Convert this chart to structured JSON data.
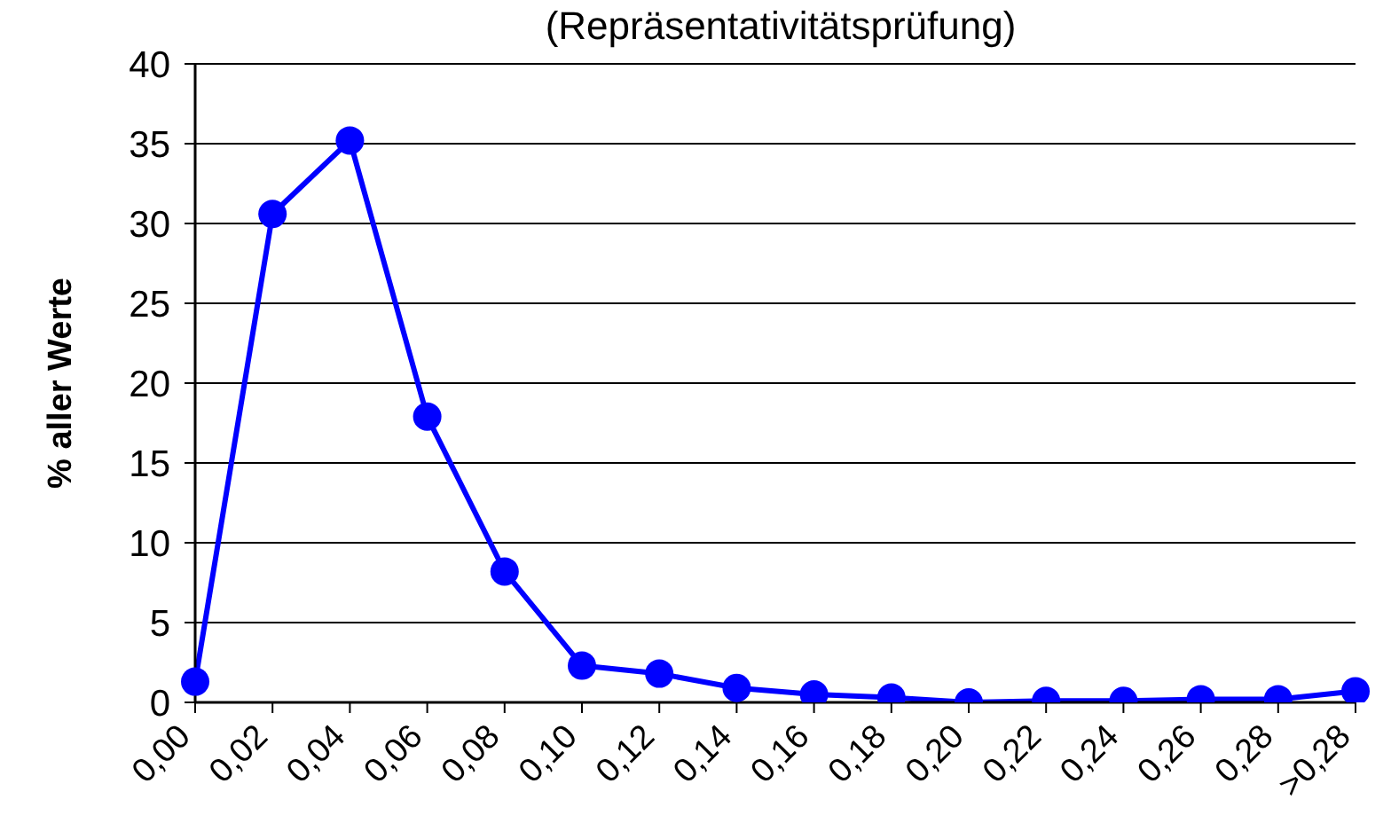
{
  "chart_data": {
    "type": "line",
    "title": "(Repräsentativitätsprüfung)",
    "ylabel": "% aller Werte",
    "categories": [
      "0,00",
      "0,02",
      "0,04",
      "0,06",
      "0,08",
      "0,10",
      "0,12",
      "0,14",
      "0,16",
      "0,18",
      "0,20",
      "0,22",
      "0,24",
      "0,26",
      "0,28",
      ">0,28"
    ],
    "values": [
      1.3,
      30.6,
      35.2,
      17.9,
      8.2,
      2.3,
      1.8,
      0.9,
      0.5,
      0.3,
      0.0,
      0.1,
      0.1,
      0.2,
      0.2,
      0.7
    ],
    "color": "#0000ff",
    "ylim": [
      0,
      40
    ],
    "yticks": [
      0,
      5,
      10,
      15,
      20,
      25,
      30,
      35,
      40
    ],
    "grid": "y",
    "marker": "circle",
    "line_style": "solid"
  }
}
